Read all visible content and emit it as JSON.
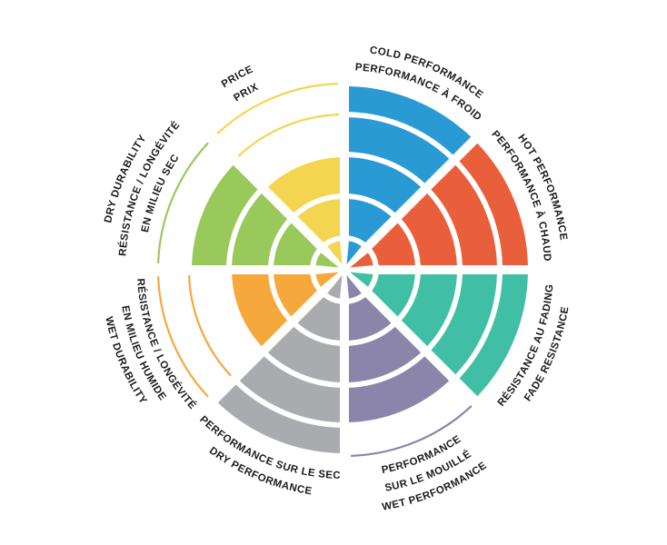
{
  "page": {
    "background": "#ffffff"
  },
  "chart_data": {
    "type": "pie",
    "subtype": "segmented-polar-rating-wheel",
    "description": "Tire characteristics rating wheel: 8 sectors of 45 degrees, each filled from center outward to its rating level; unfilled ring levels shown as thin colored outline arcs",
    "direction": "clockwise-from-north",
    "rings_total": 5,
    "max_rating": 5,
    "label_color": "#1b1b1b",
    "grid": "white ring and spoke gaps",
    "legend_position": "labels around wheel, bilingual EN/FR",
    "segments": [
      {
        "id": "cold-performance",
        "lines": [
          "COLD PERFORMANCE",
          "PERFORMANCE À FROID"
        ],
        "color": "#2A9AD4",
        "rating": 5
      },
      {
        "id": "hot-performance",
        "lines": [
          "HOT PERFORMANCE",
          "PERFORMANCE À CHAUD"
        ],
        "color": "#E95F3B",
        "rating": 5
      },
      {
        "id": "fade-resistance",
        "lines": [
          "RÉSISTANCE AU FADING",
          "FADE RESISTANCE"
        ],
        "color": "#41BFA5",
        "rating": 5
      },
      {
        "id": "wet-performance",
        "lines": [
          "PERFORMANCE",
          "SUR LE MOUILLÉ",
          "WET PERFORMANCE"
        ],
        "color": "#8B85AC",
        "rating": 4
      },
      {
        "id": "dry-performance",
        "lines": [
          "PERFORMANCE SUR LE SEC",
          "DRY PERFORMANCE"
        ],
        "color": "#A9ABAE",
        "rating": 5
      },
      {
        "id": "wet-durability",
        "lines": [
          "RÉSISTANCE / LONGÉVITÉ",
          "EN MILIEU HUMIDE",
          "WET DURABILITY"
        ],
        "color": "#F7A83D",
        "rating": 3
      },
      {
        "id": "dry-durability",
        "lines": [
          "DRY DURABILITY",
          "RÉSISTANCE / LONGÉVITÉ",
          "EN MILIEU SEC"
        ],
        "color": "#99C95A",
        "rating": 4
      },
      {
        "id": "price",
        "lines": [
          "PRICE",
          "PRIX"
        ],
        "color": "#F4D54F",
        "rating": 3
      }
    ]
  }
}
